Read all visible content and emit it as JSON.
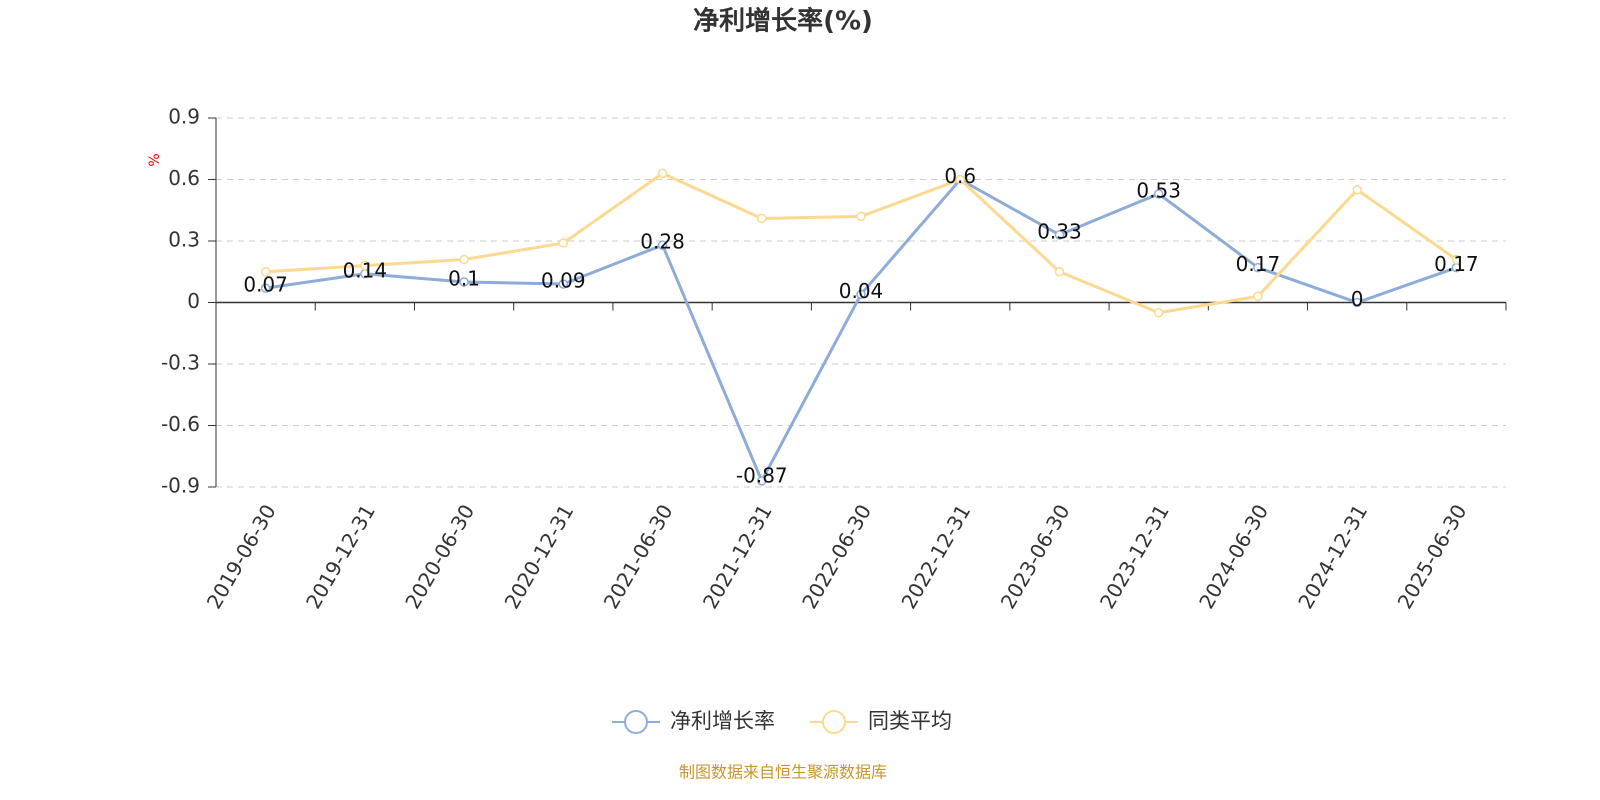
{
  "chart_data": {
    "type": "line",
    "title": "净利增长率(%)",
    "y_label": "%",
    "categories": [
      "2019-06-30",
      "2019-12-31",
      "2020-06-30",
      "2020-12-31",
      "2021-06-30",
      "2021-12-31",
      "2022-06-30",
      "2022-12-31",
      "2023-06-30",
      "2023-12-31",
      "2024-06-30",
      "2024-12-31",
      "2025-06-30"
    ],
    "series": [
      {
        "name": "净利增长率",
        "color": "#8eacd8",
        "values": [
          0.07,
          0.14,
          0.1,
          0.09,
          0.28,
          -0.87,
          0.04,
          0.6,
          0.33,
          0.53,
          0.17,
          0,
          0.17
        ],
        "labels": true
      },
      {
        "name": "同类平均",
        "color": "#fbd990",
        "values": [
          0.15,
          0.18,
          0.21,
          0.29,
          0.63,
          0.41,
          0.42,
          0.6,
          0.15,
          -0.05,
          0.03,
          0.55,
          0.21
        ],
        "labels": false
      }
    ],
    "ylim": [
      -0.9,
      0.9
    ],
    "yticks": [
      -0.9,
      -0.6,
      -0.3,
      0,
      0.3,
      0.6,
      0.9
    ],
    "grid": true,
    "legend": "bottom",
    "source": "制图数据来自恒生聚源数据库"
  }
}
